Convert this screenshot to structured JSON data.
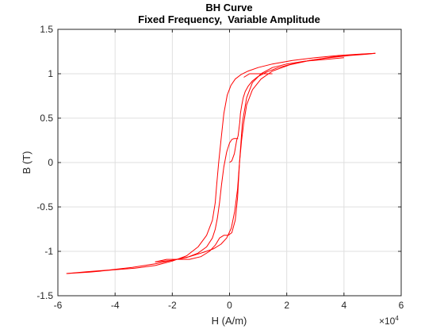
{
  "chart_data": {
    "type": "line",
    "title": "BH Curve",
    "subtitle": "Fixed Frequency,  Variable Amplitude",
    "xlabel": "H (A/m)",
    "ylabel": "B (T)",
    "x_exponent_label": "×10",
    "x_exponent_power": "4",
    "xlim": [
      -60000,
      60000
    ],
    "ylim": [
      -1.5,
      1.5
    ],
    "x_ticks": [
      -60000,
      -40000,
      -20000,
      0,
      20000,
      40000,
      60000
    ],
    "x_tick_labels": [
      "-6",
      "-4",
      "-2",
      "0",
      "2",
      "4",
      "6"
    ],
    "y_ticks": [
      -1.5,
      -1,
      -0.5,
      0,
      0.5,
      1,
      1.5
    ],
    "y_tick_labels": [
      "-1.5",
      "-1",
      "-0.5",
      "0",
      "0.5",
      "1",
      "1.5"
    ],
    "grid": true,
    "line_color": "#ff0000",
    "series": [
      {
        "x": [
          0,
          800,
          1700,
          2500,
          3000,
          3300,
          3600,
          3800,
          4300,
          4800,
          5500,
          6500,
          8000,
          10000,
          13000,
          17000,
          22000,
          28000,
          35000,
          42000,
          48000,
          51000
        ],
        "y": [
          0,
          0.02,
          0.1,
          0.25,
          0.3,
          0.38,
          0.46,
          0.55,
          0.65,
          0.73,
          0.8,
          0.86,
          0.92,
          0.97,
          1.02,
          1.07,
          1.11,
          1.15,
          1.18,
          1.205,
          1.22,
          1.23
        ]
      },
      {
        "x": [
          51000,
          45000,
          38000,
          30000,
          22000,
          15000,
          10000,
          6500,
          4000,
          2000,
          500,
          -800,
          -2000,
          -3000,
          -3800,
          -4500,
          -5000,
          -6000,
          -8000,
          -11000,
          -15000,
          -20000,
          -26000,
          -33000,
          -41000,
          -49000,
          -57000
        ],
        "y": [
          1.23,
          1.22,
          1.205,
          1.18,
          1.15,
          1.11,
          1.07,
          1.03,
          0.99,
          0.94,
          0.87,
          0.76,
          0.55,
          0.25,
          0,
          -0.25,
          -0.45,
          -0.65,
          -0.82,
          -0.95,
          -1.05,
          -1.11,
          -1.16,
          -1.19,
          -1.21,
          -1.235,
          -1.25
        ]
      },
      {
        "x": [
          -57000,
          -50000,
          -42000,
          -34000,
          -26000,
          -20000,
          -14000,
          -9000,
          -5500,
          -3000,
          -1000,
          600,
          1800,
          2800,
          3500,
          4200,
          5000,
          6000,
          8000,
          11000,
          15000,
          21000,
          28000,
          36000,
          44000,
          51000
        ],
        "y": [
          -1.25,
          -1.23,
          -1.21,
          -1.18,
          -1.14,
          -1.1,
          -1.06,
          -1.01,
          -0.97,
          -0.92,
          -0.85,
          -0.74,
          -0.55,
          -0.3,
          0,
          0.25,
          0.45,
          0.65,
          0.82,
          0.94,
          1.03,
          1.1,
          1.15,
          1.19,
          1.215,
          1.23
        ]
      },
      {
        "x": [
          3000,
          2200,
          1500,
          800,
          0,
          -1000,
          -2000,
          -2800,
          -3500,
          -4200,
          -5000,
          -6000,
          -8000,
          -11000,
          -15000,
          -20000,
          -26000
        ],
        "y": [
          0.27,
          0.27,
          0.27,
          0.26,
          0.22,
          0.12,
          -0.05,
          -0.25,
          -0.45,
          -0.62,
          -0.75,
          -0.85,
          -0.95,
          -1.02,
          -1.07,
          -1.1,
          -1.12
        ]
      },
      {
        "x": [
          -26000,
          -22000,
          -18000,
          -14000,
          -10000,
          -7000,
          -5000,
          -3500,
          -2000,
          -500,
          800,
          2000,
          2800,
          3500,
          4500,
          6000,
          8000,
          11000,
          15000,
          20000,
          26000,
          33000,
          40000
        ],
        "y": [
          -1.12,
          -1.09,
          -1.09,
          -1.09,
          -1.06,
          -1.0,
          -0.93,
          -0.85,
          -0.82,
          -0.82,
          -0.79,
          -0.65,
          -0.4,
          0,
          0.45,
          0.73,
          0.9,
          1.0,
          1.07,
          1.11,
          1.14,
          1.16,
          1.18
        ]
      },
      {
        "x": [
          5000,
          7000,
          10000,
          13000,
          15000
        ],
        "y": [
          0.96,
          1.0,
          1.0,
          1.0,
          1.0
        ]
      }
    ]
  }
}
